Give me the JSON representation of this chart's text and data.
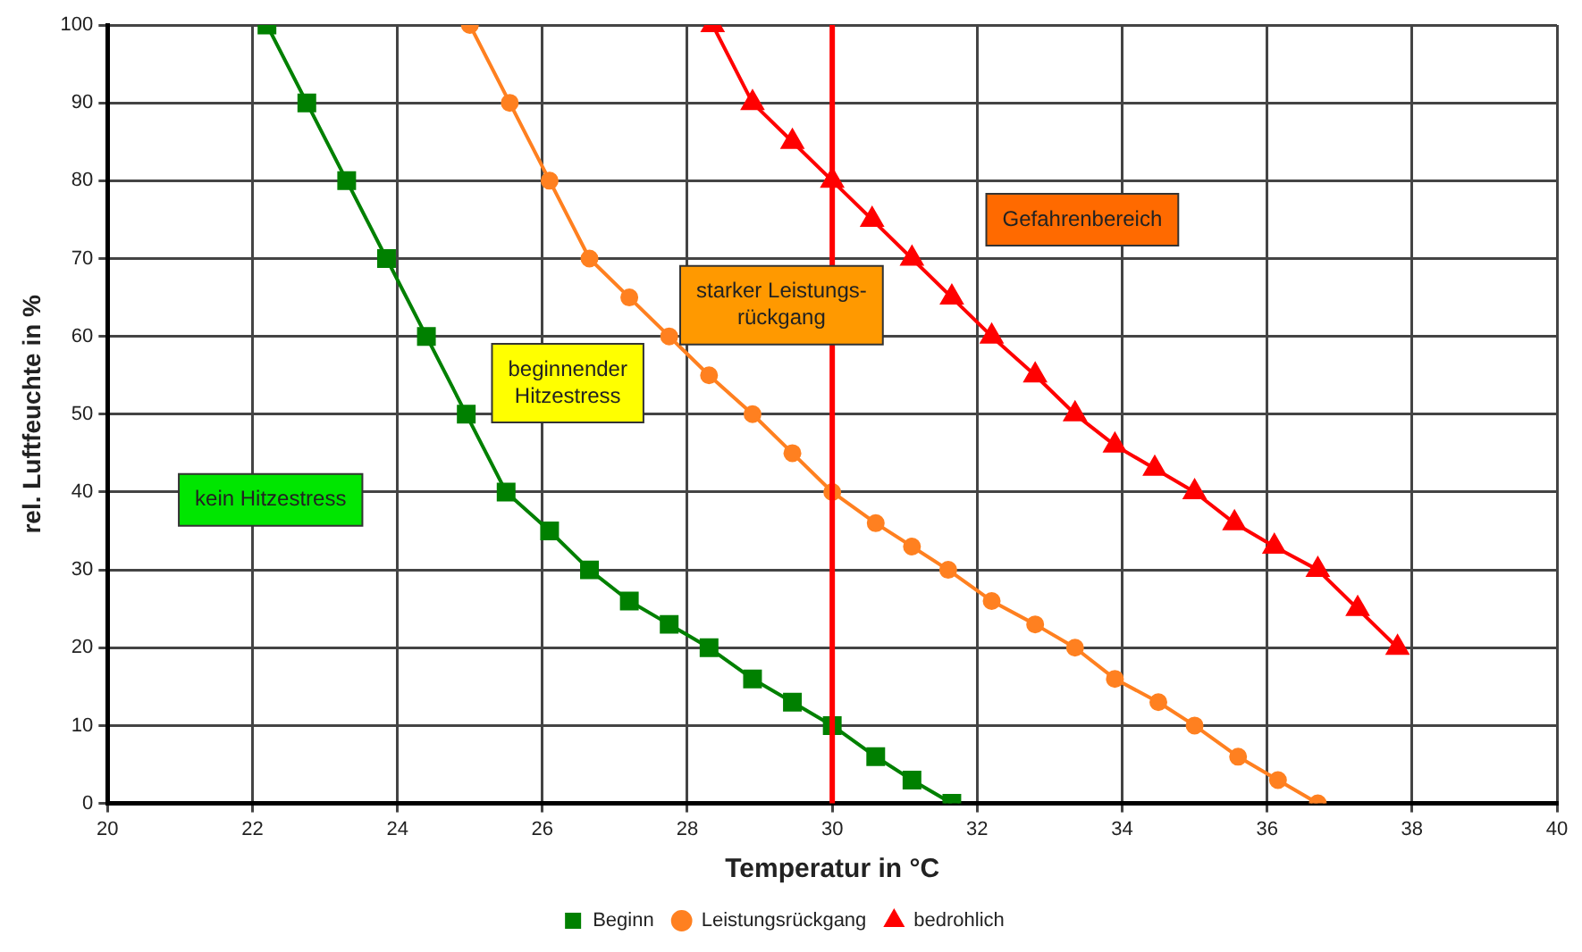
{
  "chart_data": {
    "type": "line",
    "xlabel": "Temperatur in °C",
    "ylabel": "rel. Luftfeuchte in %",
    "xlim": [
      20,
      40
    ],
    "xticks": [
      20,
      22,
      24,
      26,
      28,
      30,
      32,
      34,
      36,
      38,
      40
    ],
    "ylim": [
      0,
      100
    ],
    "yticks": [
      0,
      10,
      20,
      30,
      40,
      50,
      60,
      70,
      80,
      90,
      100
    ],
    "grid": true,
    "legend": "bottom",
    "line_style": "solid",
    "series": [
      {
        "name": "Beginn",
        "color": "#008000",
        "marker": "square",
        "x": [
          22.2,
          22.75,
          23.3,
          23.85,
          24.4,
          24.95,
          25.5,
          26.1,
          26.65,
          27.2,
          27.75,
          28.3,
          28.9,
          29.45,
          30,
          30.6,
          31.1,
          31.65
        ],
        "values": [
          100,
          90,
          80,
          70,
          60,
          50,
          40,
          35,
          30,
          26,
          23,
          20,
          16,
          13,
          10,
          6,
          3,
          0
        ]
      },
      {
        "name": "Leistungsrückgang",
        "color": "#ff8020",
        "marker": "circle",
        "x": [
          25,
          25.55,
          26.1,
          26.65,
          27.2,
          27.75,
          28.3,
          28.9,
          29.45,
          30,
          30.6,
          31.1,
          31.6,
          32.2,
          32.8,
          33.35,
          33.9,
          34.5,
          35,
          35.6,
          36.15,
          36.7
        ],
        "values": [
          100,
          90,
          80,
          70,
          65,
          60,
          55,
          50,
          45,
          40,
          36,
          33,
          30,
          26,
          23,
          20,
          16,
          13,
          10,
          6,
          3,
          0
        ]
      },
      {
        "name": "bedrohlich",
        "color": "#ff0000",
        "marker": "triangle",
        "x": [
          28.35,
          28.9,
          29.45,
          30,
          30.55,
          31.1,
          31.65,
          32.2,
          32.8,
          33.35,
          33.9,
          34.45,
          35,
          35.55,
          36.1,
          36.7,
          37.25,
          37.8
        ],
        "values": [
          100,
          90,
          85,
          80,
          75,
          70,
          65,
          60,
          55,
          50,
          46,
          43,
          40,
          36,
          33,
          30,
          25,
          20
        ]
      }
    ],
    "ref_lines": [
      {
        "axis": "x",
        "value": 30,
        "color": "#ff0000"
      }
    ],
    "annotations": [
      "kein Hitzestress",
      "beginnender\nHitzestress",
      "starker Leistungs-\nrückgang",
      "Gefahrenbereich"
    ]
  }
}
